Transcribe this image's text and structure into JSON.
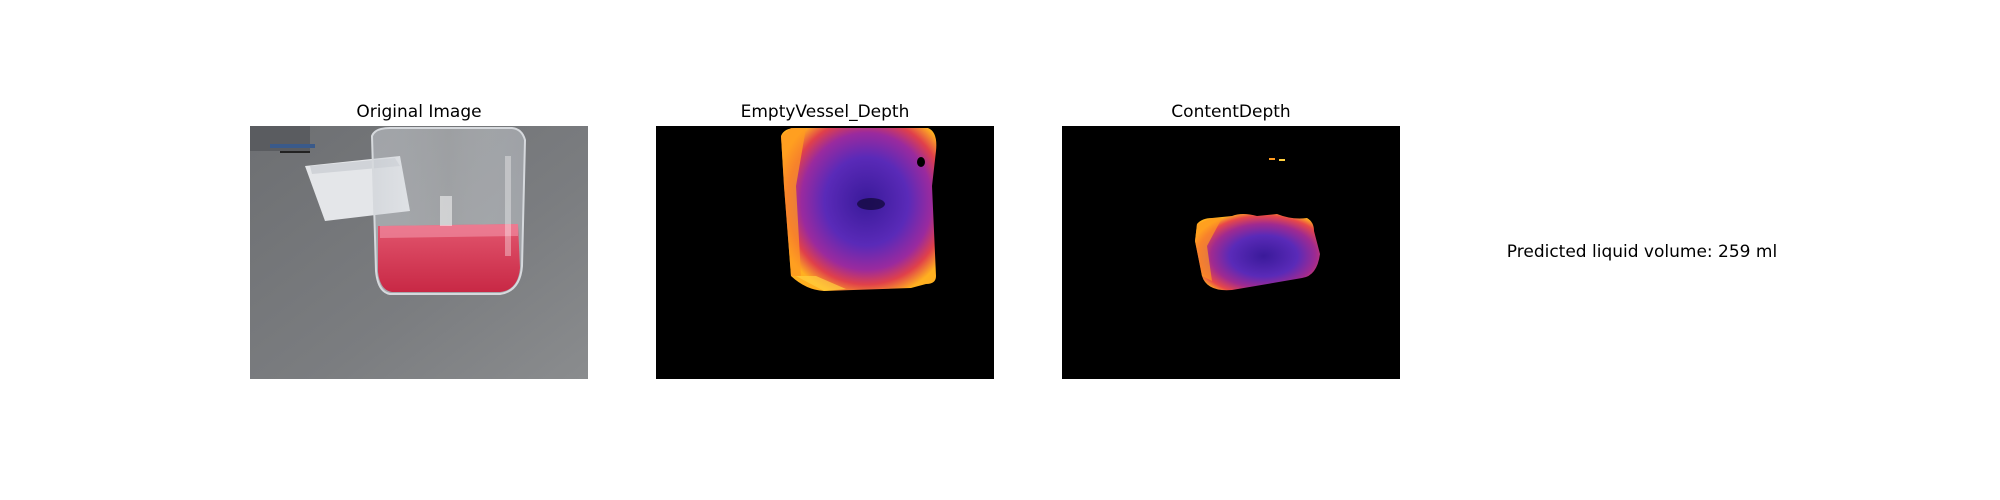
{
  "panels": [
    {
      "title": "Original Image"
    },
    {
      "title": "EmptyVessel_Depth"
    },
    {
      "title": "ContentDepth"
    }
  ],
  "result": {
    "text": "Predicted liquid volume: 259 ml"
  }
}
